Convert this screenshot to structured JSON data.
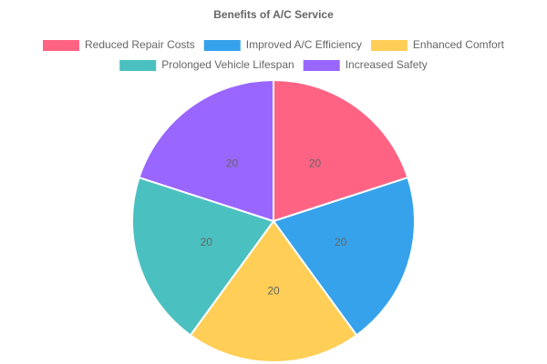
{
  "chart_data": {
    "type": "pie",
    "title": "Benefits of A/C Service",
    "categories": [
      "Reduced Repair Costs",
      "Improved A/C Efficiency",
      "Enhanced Comfort",
      "Prolonged Vehicle Lifespan",
      "Increased Safety"
    ],
    "values": [
      20,
      20,
      20,
      20,
      20
    ],
    "colors": [
      "#ff6384",
      "#36a2eb",
      "#ffce56",
      "#4bc0c0",
      "#9966ff"
    ],
    "legend": "top"
  }
}
